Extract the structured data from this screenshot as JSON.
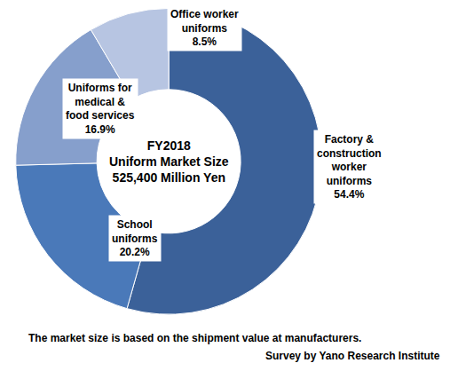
{
  "chart_data": {
    "type": "pie",
    "center_text": [
      "FY2018",
      "Uniform Market Size",
      "525,400 Million Yen"
    ],
    "categories": [
      "Factory & construction worker uniforms",
      "School uniforms",
      "Uniforms for medical & food services",
      "Office worker uniforms"
    ],
    "values": [
      54.4,
      20.2,
      16.9,
      8.5
    ],
    "value_labels": [
      "54.4%",
      "20.2%",
      "16.9%",
      "8.5%"
    ],
    "colors": [
      "#3b6199",
      "#4a79b9",
      "#869fcc",
      "#b7c5e2"
    ],
    "data_labels": true,
    "notes": [
      "The market size is based on the shipment value at manufacturers.",
      "Survey by Yano Research Institute"
    ]
  }
}
